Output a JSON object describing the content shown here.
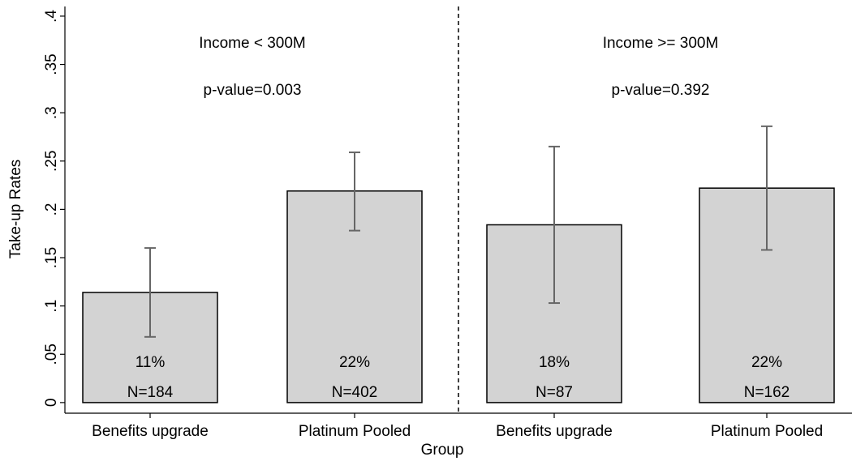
{
  "chart_data": {
    "type": "bar",
    "x_label": "Group",
    "y_label": "Take-up Rates",
    "categories": [
      "Benefits upgrade",
      "Platinum Pooled",
      "Benefits upgrade",
      "Platinum Pooled"
    ],
    "values": [
      0.114,
      0.219,
      0.184,
      0.222
    ],
    "value_labels": [
      "11%",
      "22%",
      "18%",
      "22%"
    ],
    "n_labels": [
      "N=184",
      "N=402",
      "N=87",
      "N=162"
    ],
    "ci_low": [
      0.068,
      0.178,
      0.103,
      0.158
    ],
    "ci_high": [
      0.16,
      0.259,
      0.265,
      0.286
    ],
    "color": "#d3d3d3",
    "error_color": "#666666",
    "panels": [
      {
        "title": "Income < 300M",
        "p_value": "p-value=0.003"
      },
      {
        "title": "Income >= 300M",
        "p_value": "p-value=0.392"
      }
    ],
    "ylim": [
      -0.011,
      0.41
    ],
    "yticks": [
      0,
      {
        "value": 0.05,
        "label": ".05"
      },
      {
        "value": 0.1,
        "label": ".1"
      },
      {
        "value": 0.15,
        "label": ".15"
      },
      {
        "value": 0.2,
        "label": ".2"
      },
      {
        "value": 0.25,
        "label": ".25"
      },
      {
        "value": 0.3,
        "label": ".3"
      },
      {
        "value": 0.35,
        "label": ".35"
      },
      {
        "value": 0.4,
        "label": ".4"
      }
    ]
  }
}
